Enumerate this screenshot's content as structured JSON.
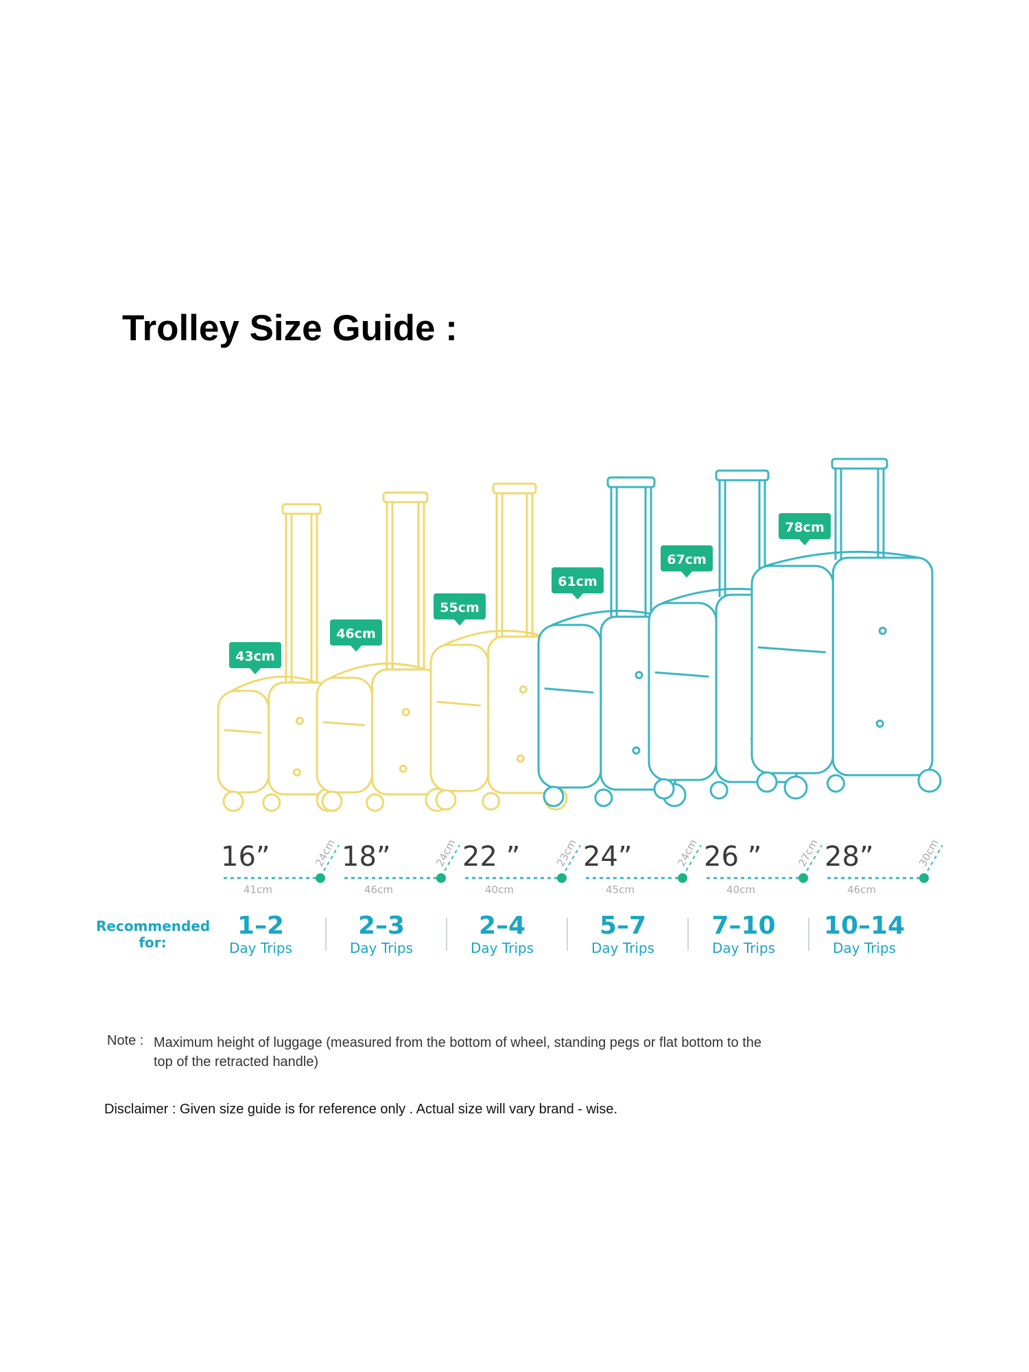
{
  "title": "Trolley Size Guide :",
  "colors": {
    "small_luggage": "#f0d870",
    "large_luggage": "#3bb5c3",
    "height_badge": "#1db386",
    "trips_text": "#1aa6c2"
  },
  "sizes": [
    {
      "size": "16”",
      "height": "43cm",
      "width": "41cm",
      "depth": "24cm",
      "trips": "1–2",
      "trips_label": "Day Trips"
    },
    {
      "size": "18”",
      "height": "46cm",
      "width": "46cm",
      "depth": "24cm",
      "trips": "2–3",
      "trips_label": "Day Trips"
    },
    {
      "size": "22 ”",
      "height": "55cm",
      "width": "40cm",
      "depth": "23cm",
      "trips": "2–4",
      "trips_label": "Day Trips"
    },
    {
      "size": "24”",
      "height": "61cm",
      "width": "45cm",
      "depth": "24cm",
      "trips": "5–7",
      "trips_label": "Day Trips"
    },
    {
      "size": "26 ”",
      "height": "67cm",
      "width": "40cm",
      "depth": "27cm",
      "trips": "7–10",
      "trips_label": "Day Trips"
    },
    {
      "size": "28”",
      "height": "78cm",
      "width": "46cm",
      "depth": "30cm",
      "trips": "10–14",
      "trips_label": "Day Trips"
    }
  ],
  "recommended_label": [
    "Recommended",
    "for:"
  ],
  "note": {
    "label": "Note :",
    "text": "Maximum height of luggage (measured from the bottom of wheel, standing pegs or flat bottom to the top of the retracted handle)"
  },
  "disclaimer": "Disclaimer : Given size guide is for reference only . Actual size will vary brand - wise."
}
